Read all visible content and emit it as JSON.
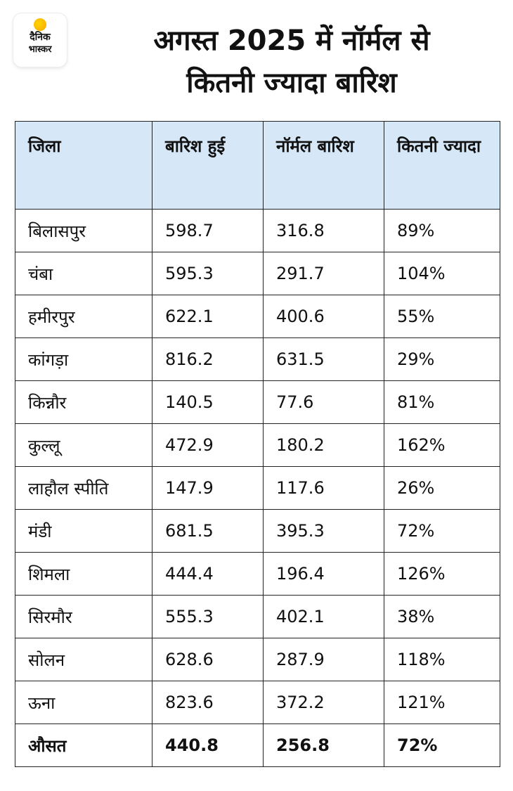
{
  "logo": {
    "line1": "दैनिक",
    "line2": "भास्कर"
  },
  "title": {
    "line1": "अगस्त 2025 में नॉर्मल से",
    "line2": "कितनी ज्यादा बारिश"
  },
  "table": {
    "headers": [
      "जिला",
      "बारिश हुई",
      "नॉर्मल बारिश",
      "कितनी ज्यादा"
    ],
    "rows": [
      [
        "बिलासपुर",
        "598.7",
        "316.8",
        "89%"
      ],
      [
        "चंबा",
        "595.3",
        "291.7",
        "104%"
      ],
      [
        "हमीरपुर",
        "622.1",
        "400.6",
        "55%"
      ],
      [
        "कांगड़ा",
        "816.2",
        "631.5",
        "29%"
      ],
      [
        "किन्नौर",
        "140.5",
        "77.6",
        "81%"
      ],
      [
        "कुल्लू",
        "472.9",
        "180.2",
        "162%"
      ],
      [
        "लाहौल स्पीति",
        "147.9",
        "117.6",
        "26%"
      ],
      [
        "मंडी",
        "681.5",
        "395.3",
        "72%"
      ],
      [
        "शिमला",
        "444.4",
        "196.4",
        "126%"
      ],
      [
        "सिरमौर",
        "555.3",
        "402.1",
        "38%"
      ],
      [
        "सोलन",
        "628.6",
        "287.9",
        "118%"
      ],
      [
        "ऊना",
        "823.6",
        "372.2",
        "121%"
      ]
    ],
    "average": [
      "औसत",
      "440.8",
      "256.8",
      "72%"
    ]
  },
  "colors": {
    "header_bg": "#d6e8f8",
    "border": "#222222",
    "logo_sun": "#f7a800"
  }
}
